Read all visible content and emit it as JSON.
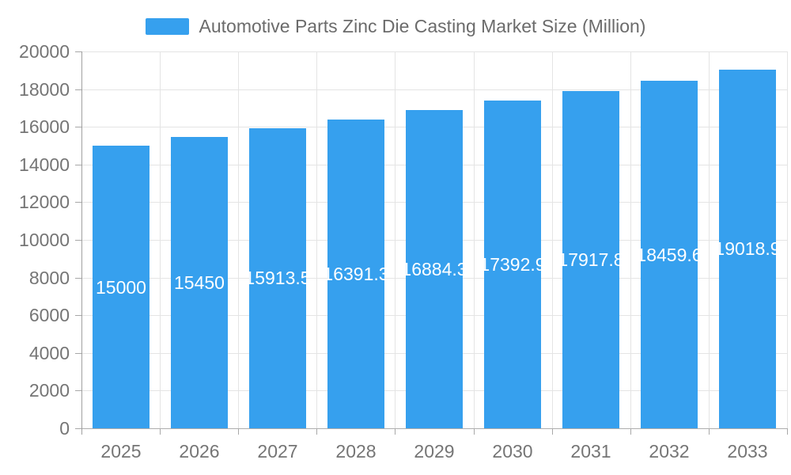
{
  "legend": {
    "label": "Automotive Parts Zinc Die Casting Market Size (Million)",
    "swatch_color": "#36a0ee"
  },
  "chart_data": {
    "type": "bar",
    "title": "Automotive Parts Zinc Die Casting Market Size (Million)",
    "categories": [
      "2025",
      "2026",
      "2027",
      "2028",
      "2029",
      "2030",
      "2031",
      "2032",
      "2033"
    ],
    "values": [
      15000,
      15450,
      15913.5,
      16391.3,
      16884.3,
      17392.9,
      17917.8,
      18459.6,
      19018.9
    ],
    "bar_labels": [
      "15000",
      "15450",
      "15913.5",
      "16391.3",
      "16884.3",
      "17392.9",
      "17917.8",
      "18459.6",
      "19018.9"
    ],
    "series_name": "Automotive Parts Zinc Die Casting Market Size (Million)",
    "xlabel": "",
    "ylabel": "",
    "ylim": [
      0,
      20000
    ],
    "ytick_step": 2000,
    "yticks": [
      0,
      2000,
      4000,
      6000,
      8000,
      10000,
      12000,
      14000,
      16000,
      18000,
      20000
    ],
    "grid": true,
    "legend_position": "top",
    "bar_color": "#36a0ee",
    "bar_label_color": "#ffffff",
    "axis_label_color": "#757575",
    "grid_color": "#e4e4e4",
    "axis_line_color": "#a8a8a8",
    "background_color": "#ffffff"
  }
}
